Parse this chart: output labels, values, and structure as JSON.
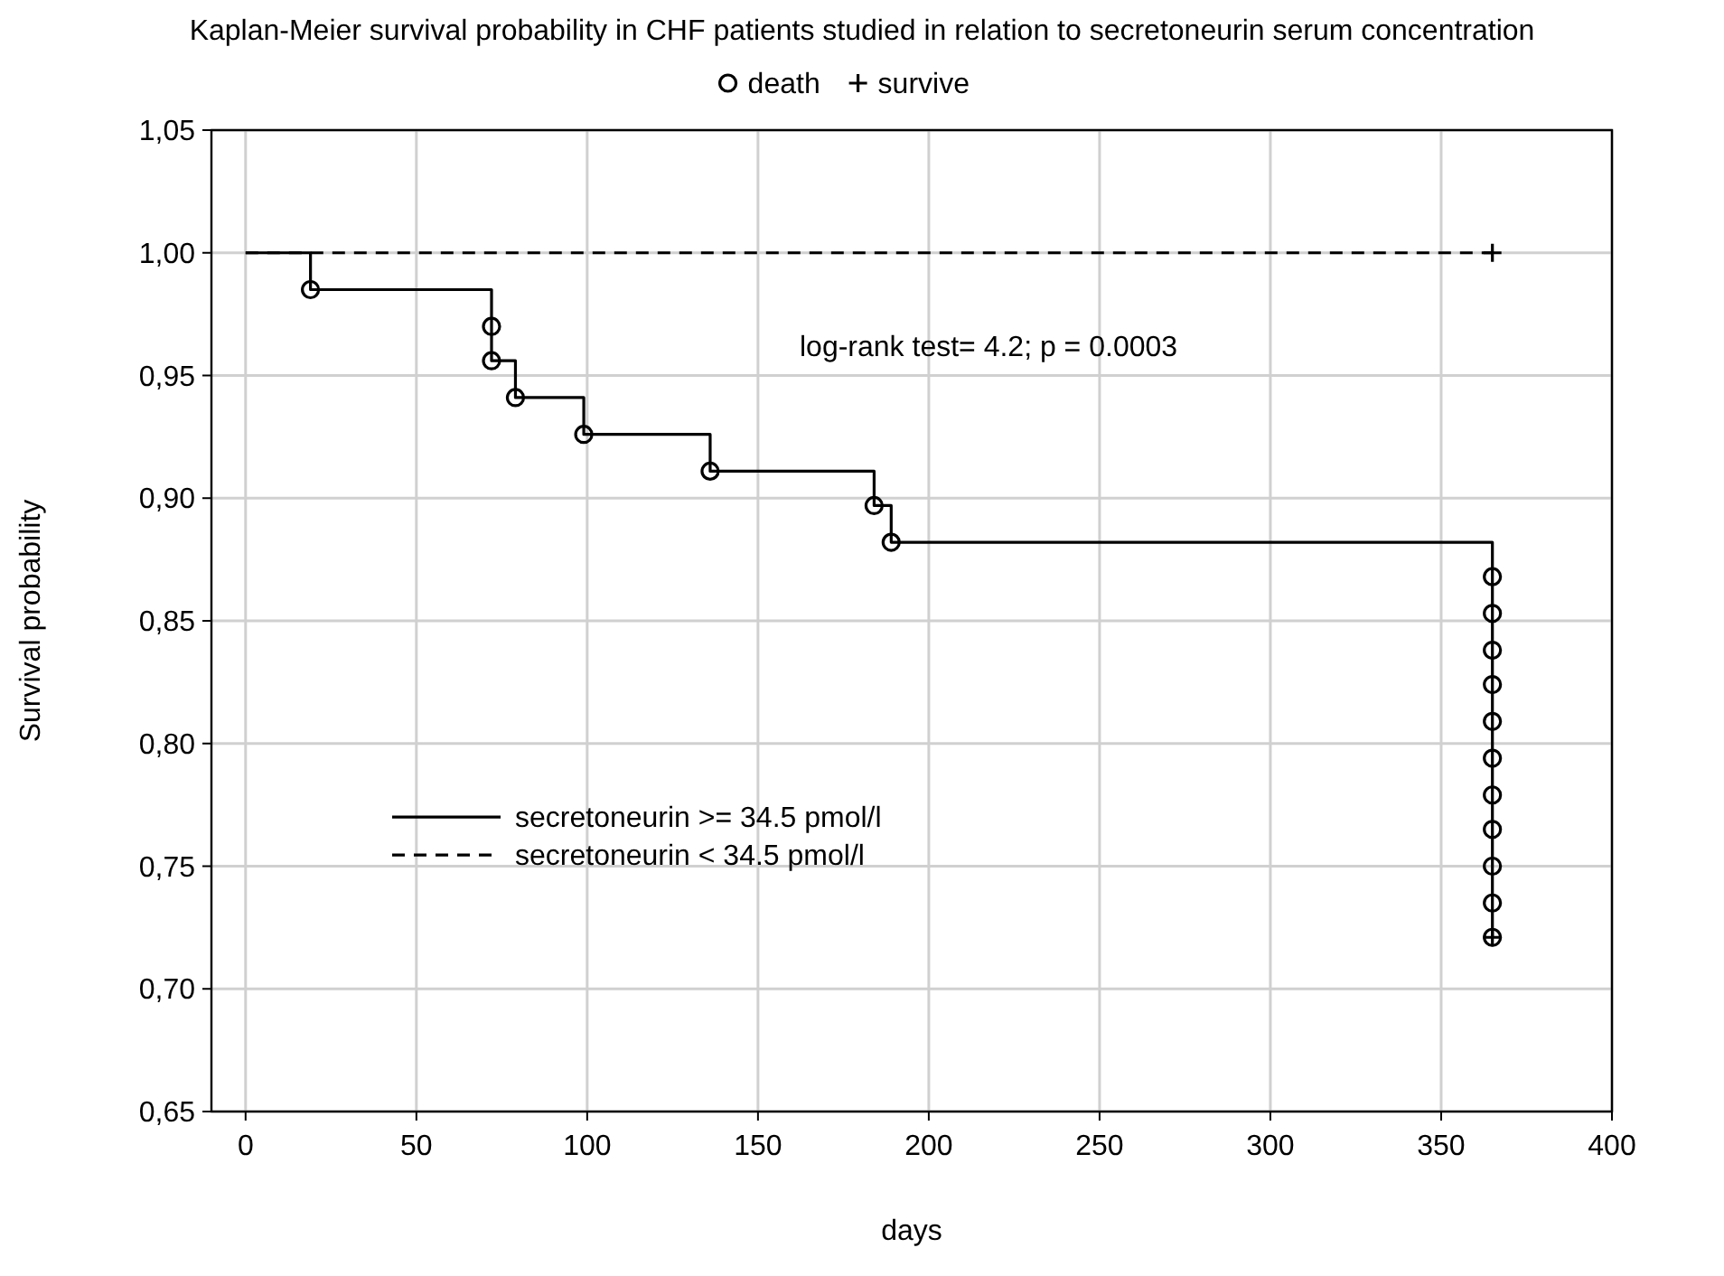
{
  "chart_data": {
    "type": "step",
    "title": "Kaplan-Meier survival probability in CHF patients studied in relation to secretoneurin serum concentration",
    "xlabel": "days",
    "ylabel": "Survival probability",
    "annotations": [
      "log-rank test= 4.2; p = 0.0003"
    ],
    "xlim": [
      -10,
      400
    ],
    "xticks": [
      0,
      50,
      100,
      150,
      200,
      250,
      300,
      350,
      400
    ],
    "ylim": [
      0.65,
      1.05
    ],
    "yticks": [
      {
        "value": 0.65,
        "label": "0,65"
      },
      {
        "value": 0.7,
        "label": "0,70"
      },
      {
        "value": 0.75,
        "label": "0,75"
      },
      {
        "value": 0.8,
        "label": "0,80"
      },
      {
        "value": 0.85,
        "label": "0,85"
      },
      {
        "value": 0.9,
        "label": "0,90"
      },
      {
        "value": 0.95,
        "label": "0,95"
      },
      {
        "value": 1.0,
        "label": "1,00"
      },
      {
        "value": 1.05,
        "label": "1,05"
      }
    ],
    "grid": true,
    "legend": "left",
    "series": [
      {
        "name": "secretoneurin >= 34.5 pmol/l",
        "color": "#000000",
        "line_style": "solid",
        "marker": "none",
        "x": [
          0,
          19,
          72,
          72,
          79,
          99,
          136,
          184,
          189,
          365
        ],
        "values": [
          1.0,
          0.985,
          0.97,
          0.956,
          0.941,
          0.926,
          0.911,
          0.897,
          0.882,
          0.721
        ]
      },
      {
        "name": "secretoneurin < 34.5 pmol/l",
        "color": "#000000",
        "line_style": "dashed",
        "marker": "none",
        "x": [
          0,
          365
        ],
        "values": [
          1.0,
          1.0
        ]
      },
      {
        "name": "death",
        "type": "scatter",
        "color": "#000000",
        "marker": "circle",
        "x": [
          19,
          72,
          72,
          79,
          99,
          136,
          184,
          189,
          365,
          365,
          365,
          365,
          365,
          365,
          365,
          365,
          365,
          365,
          365
        ],
        "values": [
          0.985,
          0.97,
          0.956,
          0.941,
          0.926,
          0.911,
          0.897,
          0.882,
          0.868,
          0.853,
          0.838,
          0.824,
          0.809,
          0.794,
          0.779,
          0.765,
          0.75,
          0.735,
          0.721
        ]
      },
      {
        "name": "survive",
        "type": "scatter",
        "color": "#000000",
        "marker": "cross",
        "x": [
          365,
          365
        ],
        "values": [
          1.0,
          0.721
        ]
      }
    ]
  }
}
